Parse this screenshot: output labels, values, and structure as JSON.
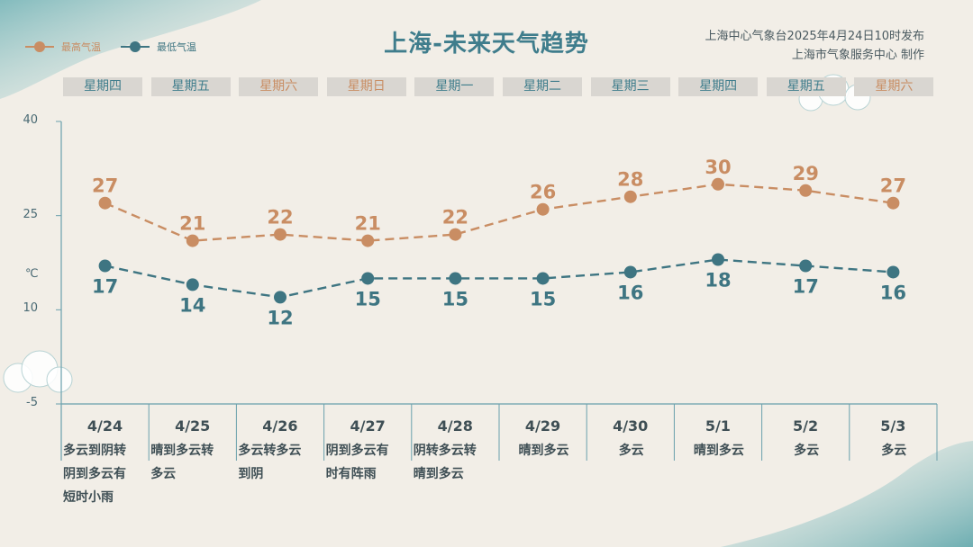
{
  "title": "上海-未来天气趋势",
  "source": {
    "line1": "上海中心气象台2025年4月24日10时发布",
    "line2": "上海市气象服务中心 制作"
  },
  "legend": {
    "high_label": "最高气温",
    "low_label": "最低气温"
  },
  "colors": {
    "high": "#c98d63",
    "low": "#3e7582",
    "weekday_normal": "#3f7d8c",
    "weekday_weekend": "#c98d63",
    "axis": "#6aa0ad"
  },
  "unit_label": "℃",
  "chart_data": {
    "type": "line",
    "categories": [
      "4/24",
      "4/25",
      "4/26",
      "4/27",
      "4/28",
      "4/29",
      "4/30",
      "5/1",
      "5/2",
      "5/3"
    ],
    "weekdays": [
      "星期四",
      "星期五",
      "星期六",
      "星期日",
      "星期一",
      "星期二",
      "星期三",
      "星期四",
      "星期五",
      "星期六"
    ],
    "weekend": [
      false,
      false,
      true,
      true,
      false,
      false,
      false,
      false,
      false,
      true
    ],
    "weather": [
      "多云到阴转\n阴到多云有\n短时小雨",
      "晴到多云转\n多云",
      "多云转多云\n到阴",
      "阴到多云有\n时有阵雨",
      "阴转多云转\n晴到多云",
      "晴到多云",
      "多云",
      "晴到多云",
      "多云",
      "多云"
    ],
    "series": [
      {
        "name": "最高气温",
        "values": [
          27,
          21,
          22,
          21,
          22,
          26,
          28,
          30,
          29,
          27
        ]
      },
      {
        "name": "最低气温",
        "values": [
          17,
          14,
          12,
          15,
          15,
          15,
          16,
          18,
          17,
          16
        ]
      }
    ],
    "yticks": [
      40,
      25,
      10,
      -5
    ],
    "ylim": [
      -5,
      40
    ]
  }
}
